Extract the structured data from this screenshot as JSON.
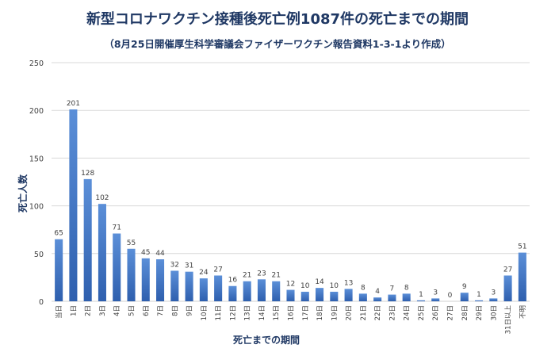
{
  "chart_data": {
    "type": "bar",
    "title": "新型コロナワクチン接種後死亡例1087件の死亡までの期間",
    "subtitle": "（8月25日開催厚生科学審議会ファイザーワクチン報告資料1-3-1より作成）",
    "xlabel": "死亡までの期間",
    "ylabel": "死亡人数",
    "ylim": [
      0,
      250
    ],
    "yticks": [
      "0",
      "50",
      "100",
      "150",
      "200",
      "250"
    ],
    "grid": true,
    "categories": [
      "当日",
      "1日",
      "2日",
      "3日",
      "4日",
      "5日",
      "6日",
      "7日",
      "8日",
      "9日",
      "10日",
      "11日",
      "12日",
      "13日",
      "14日",
      "15日",
      "16日",
      "17日",
      "18日",
      "19日",
      "20日",
      "21日",
      "22日",
      "23日",
      "24日",
      "25日",
      "26日",
      "27日",
      "28日",
      "29日",
      "30日",
      "31日以上",
      "不明"
    ],
    "values": [
      65,
      201,
      128,
      102,
      71,
      55,
      45,
      44,
      32,
      31,
      24,
      27,
      16,
      21,
      23,
      21,
      12,
      10,
      14,
      10,
      13,
      8,
      4,
      7,
      8,
      1,
      3,
      0,
      9,
      1,
      3,
      27,
      51
    ],
    "colors": {
      "bar_top": "#5b8fd8",
      "bar_bottom": "#2e5fae",
      "title": "#1f3864",
      "grid": "#d9d9d9",
      "text": "#404040"
    }
  }
}
